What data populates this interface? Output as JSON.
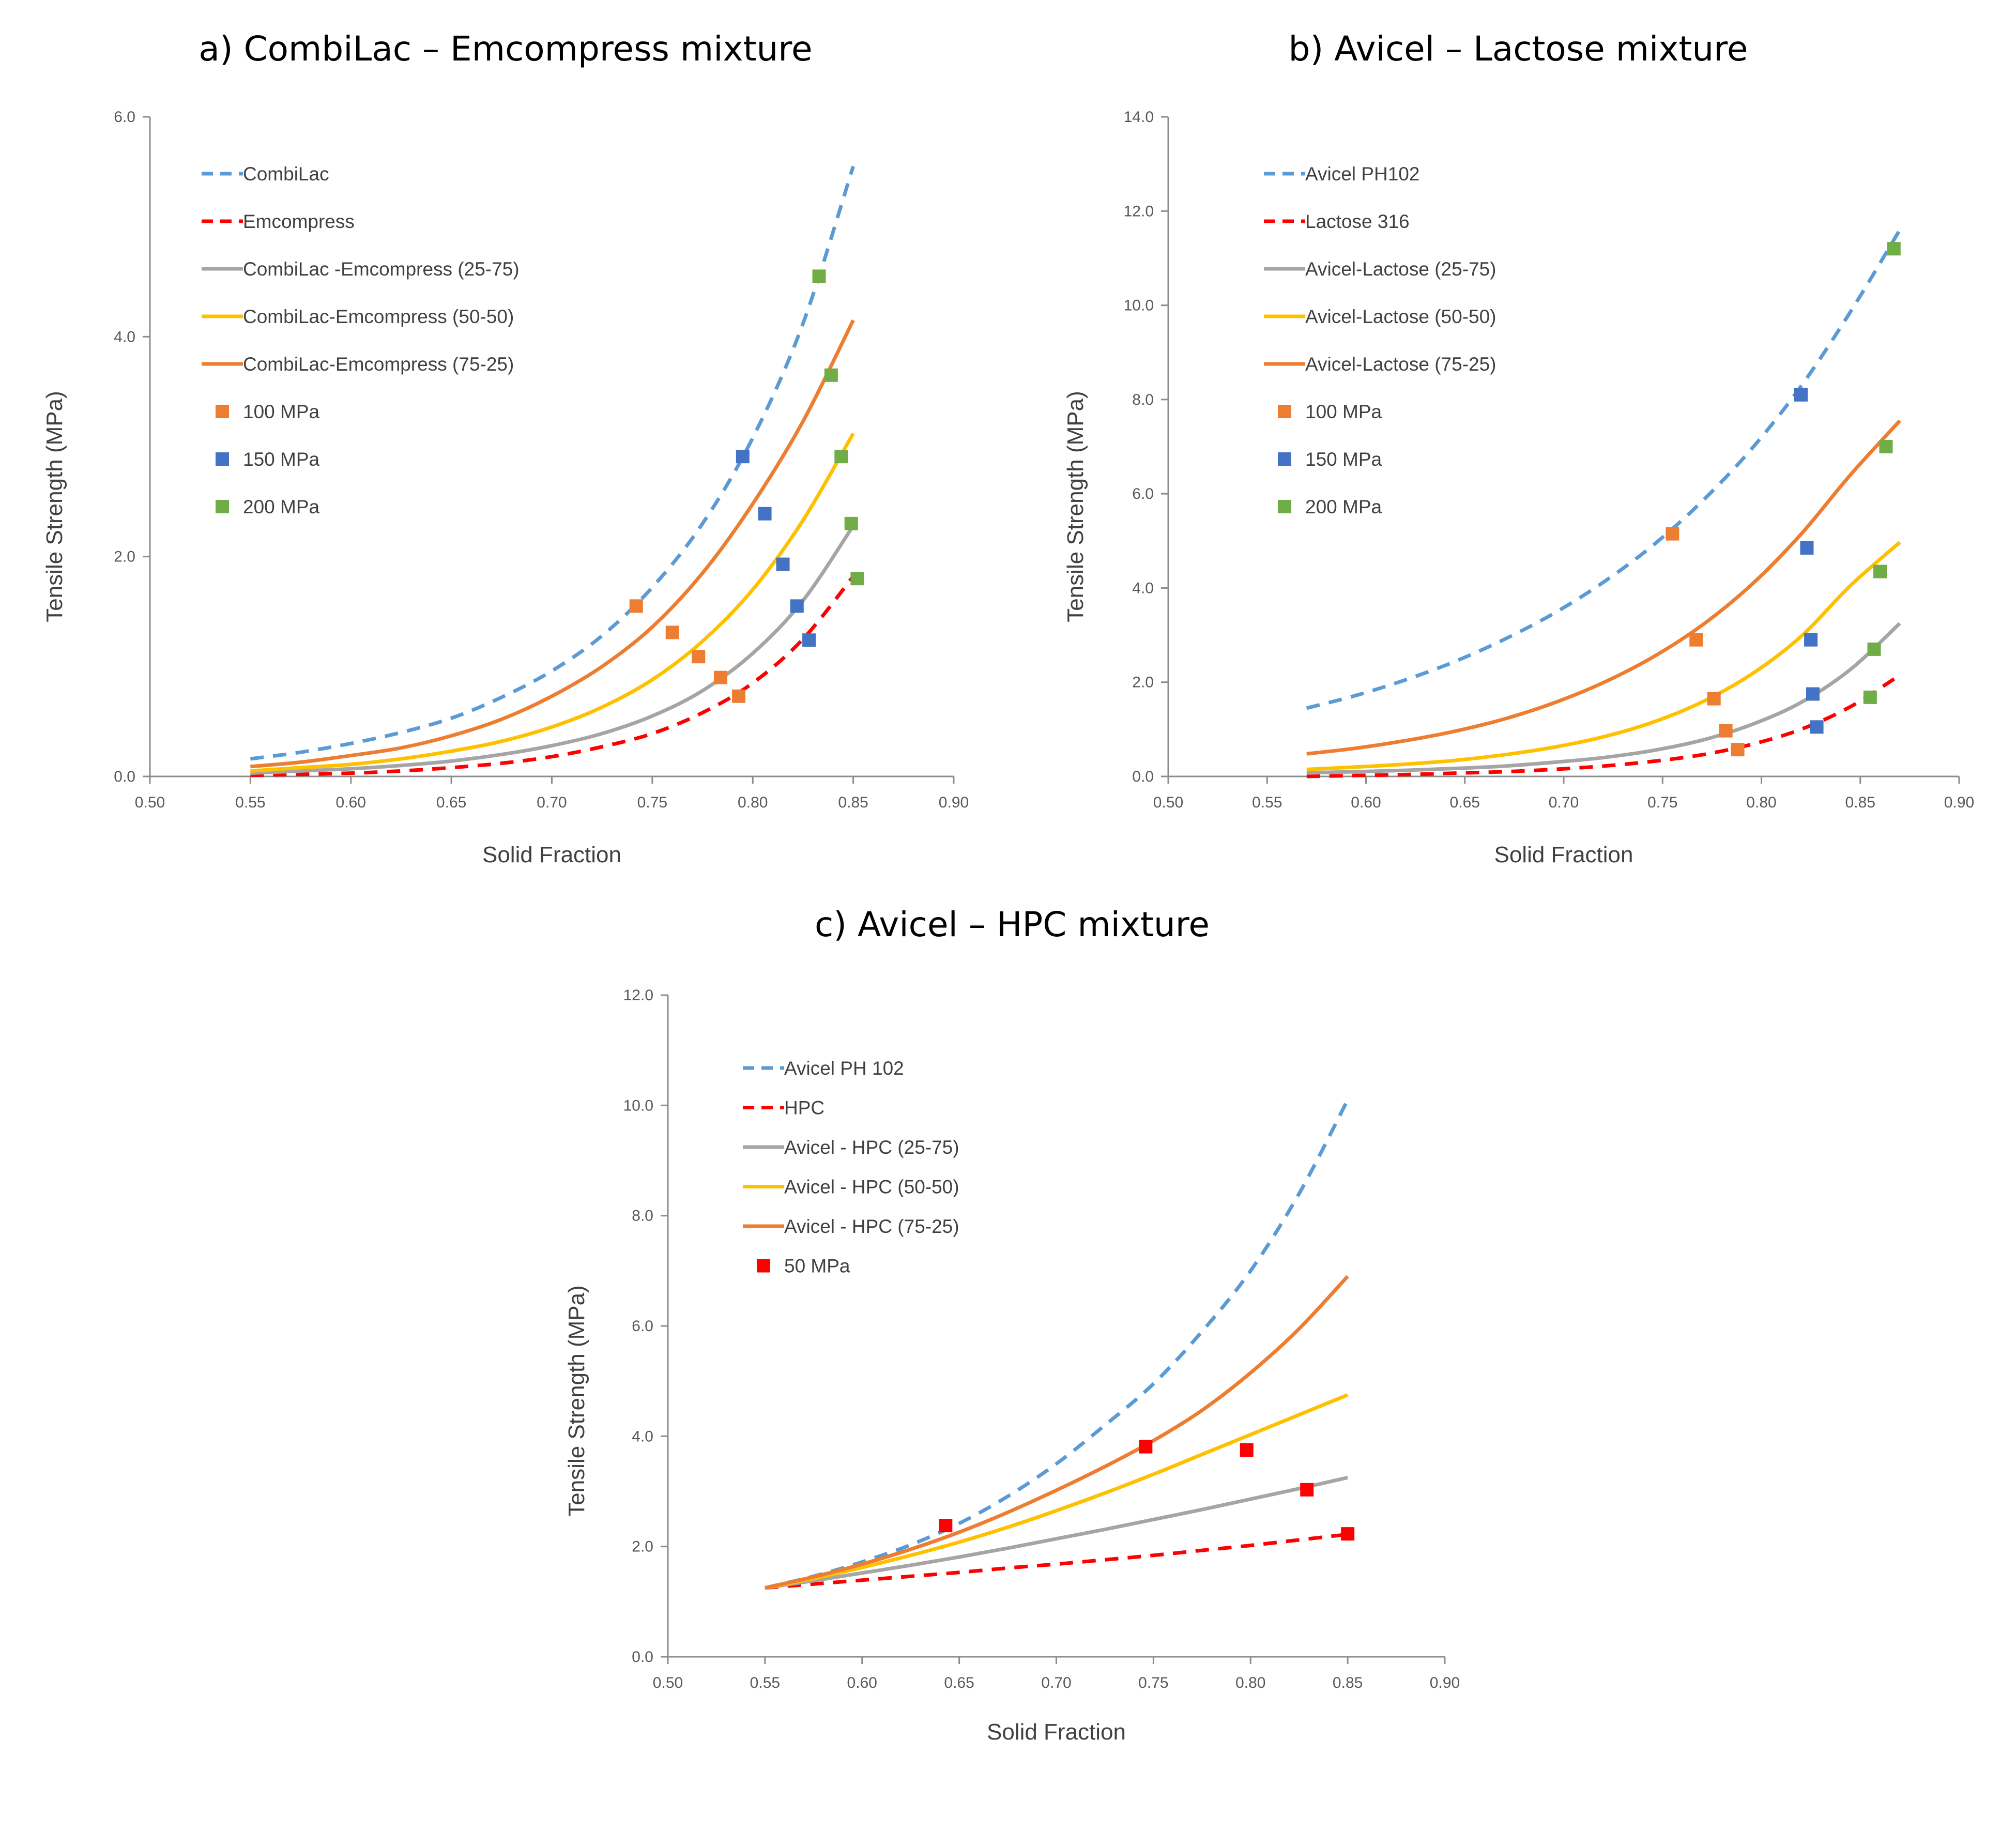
{
  "chart_data": [
    {
      "type": "line",
      "title": "a) CombiLac – Emcompress mixture",
      "xlabel": "Solid Fraction",
      "ylabel": "Tensile Strength (MPa)",
      "xlim": [
        0.5,
        0.9
      ],
      "ylim": [
        0,
        6.0
      ],
      "x_ticks": [
        "0.50",
        "0.55",
        "0.60",
        "0.65",
        "0.70",
        "0.75",
        "0.80",
        "0.85",
        "0.90"
      ],
      "y_ticks": [
        "0.0",
        "2.0",
        "4.0",
        "6.0"
      ],
      "grid": false,
      "legend_position": "top-left",
      "x": [
        0.55,
        0.575,
        0.6,
        0.625,
        0.65,
        0.675,
        0.7,
        0.725,
        0.75,
        0.775,
        0.8,
        0.825,
        0.85
      ],
      "series": [
        {
          "name": "CombiLac",
          "style": "dashed",
          "color": "#5B9BD5",
          "values": [
            0.16,
            0.22,
            0.3,
            0.4,
            0.53,
            0.72,
            0.96,
            1.28,
            1.72,
            2.3,
            3.08,
            4.12,
            5.55
          ]
        },
        {
          "name": "Emcompress",
          "style": "dashed",
          "color": "#FF0000",
          "values": [
            0.01,
            0.02,
            0.03,
            0.05,
            0.08,
            0.12,
            0.18,
            0.27,
            0.39,
            0.58,
            0.85,
            1.25,
            1.82
          ]
        },
        {
          "name": "CombiLac -Emcompress (25-75)",
          "style": "solid",
          "color": "#A5A5A5",
          "values": [
            0.03,
            0.05,
            0.07,
            0.1,
            0.14,
            0.2,
            0.28,
            0.39,
            0.55,
            0.78,
            1.12,
            1.6,
            2.28
          ]
        },
        {
          "name": "CombiLac-Emcompress (50-50)",
          "style": "solid",
          "color": "#FFC000",
          "values": [
            0.05,
            0.08,
            0.11,
            0.16,
            0.23,
            0.32,
            0.45,
            0.63,
            0.88,
            1.23,
            1.7,
            2.33,
            3.12
          ]
        },
        {
          "name": "CombiLac-Emcompress (75-25)",
          "style": "solid",
          "color": "#ED7D31",
          "values": [
            0.09,
            0.13,
            0.19,
            0.26,
            0.37,
            0.52,
            0.73,
            1.0,
            1.36,
            1.85,
            2.48,
            3.23,
            4.15
          ]
        }
      ],
      "points": [
        {
          "name": "100 MPa",
          "color": "#ED7D31",
          "x": [
            0.742,
            0.76,
            0.773,
            0.784,
            0.793
          ],
          "y": [
            1.55,
            1.31,
            1.09,
            0.9,
            0.73
          ]
        },
        {
          "name": "150 MPa",
          "color": "#4472C4",
          "x": [
            0.795,
            0.806,
            0.815,
            0.822,
            0.828
          ],
          "y": [
            2.91,
            2.39,
            1.93,
            1.55,
            1.24
          ]
        },
        {
          "name": "200 MPa",
          "color": "#70AD47",
          "x": [
            0.833,
            0.839,
            0.844,
            0.849,
            0.852
          ],
          "y": [
            4.55,
            3.65,
            2.91,
            2.3,
            1.8
          ]
        }
      ]
    },
    {
      "type": "line",
      "title": "b) Avicel – Lactose mixture",
      "xlabel": "Solid Fraction",
      "ylabel": "Tensile Strength (MPa)",
      "xlim": [
        0.5,
        0.9
      ],
      "ylim": [
        0,
        14.0
      ],
      "x_ticks": [
        "0.50",
        "0.55",
        "0.60",
        "0.65",
        "0.70",
        "0.75",
        "0.80",
        "0.85",
        "0.90"
      ],
      "y_ticks": [
        "0.0",
        "2.0",
        "4.0",
        "6.0",
        "8.0",
        "10.0",
        "12.0",
        "14.0"
      ],
      "grid": false,
      "legend_position": "top-left",
      "x": [
        0.57,
        0.595,
        0.62,
        0.645,
        0.67,
        0.695,
        0.72,
        0.745,
        0.77,
        0.795,
        0.82,
        0.845,
        0.87
      ],
      "series": [
        {
          "name": "Avicel PH102",
          "style": "dashed",
          "color": "#5B9BD5",
          "values": [
            1.45,
            1.72,
            2.05,
            2.44,
            2.91,
            3.46,
            4.12,
            4.9,
            5.84,
            6.95,
            8.28,
            9.86,
            11.6
          ]
        },
        {
          "name": "Lactose 316",
          "style": "dashed",
          "color": "#FF0000",
          "values": [
            0.0,
            0.02,
            0.04,
            0.07,
            0.1,
            0.15,
            0.22,
            0.32,
            0.46,
            0.68,
            1.0,
            1.48,
            2.15
          ]
        },
        {
          "name": "Avicel-Lactose (25-75)",
          "style": "solid",
          "color": "#A5A5A5",
          "values": [
            0.08,
            0.1,
            0.13,
            0.17,
            0.22,
            0.3,
            0.4,
            0.55,
            0.77,
            1.1,
            1.57,
            2.27,
            3.25
          ]
        },
        {
          "name": "Avicel-Lactose (50-50)",
          "style": "solid",
          "color": "#FFC000",
          "values": [
            0.15,
            0.2,
            0.26,
            0.34,
            0.46,
            0.62,
            0.84,
            1.15,
            1.58,
            2.17,
            2.97,
            4.05,
            4.97
          ]
        },
        {
          "name": "Avicel-Lactose (75-25)",
          "style": "solid",
          "color": "#ED7D31",
          "values": [
            0.48,
            0.6,
            0.76,
            0.96,
            1.22,
            1.56,
            1.99,
            2.53,
            3.21,
            4.07,
            5.14,
            6.4,
            7.55
          ]
        }
      ],
      "points": [
        {
          "name": "100 MPa",
          "color": "#ED7D31",
          "x": [
            0.755,
            0.767,
            0.776,
            0.782,
            0.788
          ],
          "y": [
            5.15,
            2.9,
            1.65,
            0.97,
            0.57
          ]
        },
        {
          "name": "150 MPa",
          "color": "#4472C4",
          "x": [
            0.82,
            0.823,
            0.825,
            0.826,
            0.828
          ],
          "y": [
            8.1,
            4.85,
            2.9,
            1.75,
            1.05
          ]
        },
        {
          "name": "200 MPa",
          "color": "#70AD47",
          "x": [
            0.867,
            0.863,
            0.86,
            0.857,
            0.855
          ],
          "y": [
            11.2,
            7.0,
            4.35,
            2.7,
            1.68
          ]
        }
      ]
    },
    {
      "type": "line",
      "title": "c) Avicel – HPC mixture",
      "xlabel": "Solid Fraction",
      "ylabel": "Tensile Strength (MPa)",
      "xlim": [
        0.5,
        0.9
      ],
      "ylim": [
        0,
        12.0
      ],
      "x_ticks": [
        "0.50",
        "0.55",
        "0.60",
        "0.65",
        "0.70",
        "0.75",
        "0.80",
        "0.85",
        "0.90"
      ],
      "y_ticks": [
        "0.0",
        "2.0",
        "4.0",
        "6.0",
        "8.0",
        "10.0",
        "12.0"
      ],
      "grid": false,
      "legend_position": "top-left",
      "x": [
        0.55,
        0.575,
        0.6,
        0.625,
        0.65,
        0.675,
        0.7,
        0.725,
        0.75,
        0.775,
        0.8,
        0.825,
        0.85
      ],
      "series": [
        {
          "name": "Avicel PH 102",
          "style": "dashed",
          "color": "#5B9BD5",
          "values": [
            1.25,
            1.46,
            1.72,
            2.03,
            2.42,
            2.91,
            3.5,
            4.2,
            4.95,
            5.9,
            7.0,
            8.4,
            10.1
          ]
        },
        {
          "name": "HPC",
          "style": "dashed",
          "color": "#FF0000",
          "values": [
            1.25,
            1.32,
            1.39,
            1.46,
            1.53,
            1.61,
            1.68,
            1.76,
            1.84,
            1.93,
            2.02,
            2.12,
            2.22
          ]
        },
        {
          "name": "Avicel - HPC (25-75)",
          "style": "solid",
          "color": "#A5A5A5",
          "values": [
            1.25,
            1.38,
            1.52,
            1.66,
            1.81,
            1.97,
            2.14,
            2.31,
            2.49,
            2.67,
            2.86,
            3.05,
            3.25
          ]
        },
        {
          "name": "Avicel - HPC (50-50)",
          "style": "solid",
          "color": "#FFC000",
          "values": [
            1.25,
            1.42,
            1.62,
            1.84,
            2.08,
            2.35,
            2.65,
            2.97,
            3.31,
            3.67,
            4.03,
            4.39,
            4.75
          ]
        },
        {
          "name": "Avicel - HPC (75-25)",
          "style": "solid",
          "color": "#ED7D31",
          "values": [
            1.25,
            1.45,
            1.68,
            1.95,
            2.26,
            2.62,
            3.02,
            3.45,
            3.92,
            4.47,
            5.15,
            5.95,
            6.9
          ]
        }
      ],
      "points": [
        {
          "name": "50 MPa",
          "color": "#FF0000",
          "x": [
            0.643,
            0.746,
            0.798,
            0.829,
            0.85
          ],
          "y": [
            2.38,
            3.81,
            3.75,
            3.03,
            2.23
          ]
        }
      ]
    }
  ]
}
